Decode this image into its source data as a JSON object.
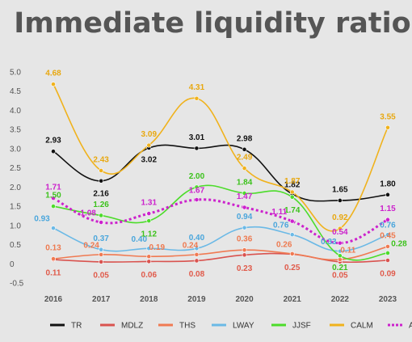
{
  "chart_data": {
    "type": "line",
    "title": "Immediate liquidity ratio",
    "xlabel": "",
    "ylabel": "",
    "categories": [
      "2016",
      "2017",
      "2018",
      "2019",
      "2020",
      "2021",
      "2022",
      "2023"
    ],
    "ylim": [
      -0.5,
      5.0
    ],
    "yticks": [
      "-0.5",
      "0",
      "0.5",
      "1.0",
      "1.5",
      "2.0",
      "2.5",
      "3.0",
      "3.5",
      "4.0",
      "4.5",
      "5.0"
    ],
    "grid": false,
    "legend_position": "bottom",
    "series": [
      {
        "name": "TR",
        "color": "#111111",
        "dash": false,
        "values": [
          2.93,
          2.16,
          3.02,
          3.01,
          2.98,
          1.82,
          1.65,
          1.8
        ],
        "labels": [
          "2.93",
          "2.16",
          "3.02",
          "3.01",
          "2.98",
          "1.82",
          "1.65",
          "1.80"
        ],
        "label_color": "#111111"
      },
      {
        "name": "MDLZ",
        "color": "#d9534f",
        "dash": false,
        "values": [
          0.11,
          0.05,
          0.06,
          0.08,
          0.23,
          0.25,
          0.05,
          0.09
        ],
        "labels": [
          "0.11",
          "0.05",
          "0.06",
          "0.08",
          "0.23",
          "0.25",
          "0.05",
          "0.09"
        ],
        "label_color": "#e05a4a"
      },
      {
        "name": "THS",
        "color": "#f07a52",
        "dash": false,
        "values": [
          0.13,
          0.24,
          0.19,
          0.24,
          0.36,
          0.26,
          0.11,
          0.45
        ],
        "labels": [
          "0.13",
          "0.24",
          "0.19",
          "0.24",
          "0.36",
          "0.26",
          "0.11",
          "0.45"
        ],
        "label_color": "#ee7a50"
      },
      {
        "name": "LWAY",
        "color": "#6bb9e6",
        "dash": false,
        "values": [
          0.93,
          0.37,
          0.4,
          0.4,
          0.94,
          0.76,
          0.33,
          0.76
        ],
        "labels": [
          "0.93",
          "0.37",
          "0.40",
          "0.40",
          "0.94",
          "0.76",
          "0.33",
          "0.76"
        ],
        "label_color": "#4aa6dc"
      },
      {
        "name": "JJSF",
        "color": "#4cdc2a",
        "dash": false,
        "values": [
          1.5,
          1.26,
          1.12,
          2.0,
          1.84,
          1.74,
          0.21,
          0.28
        ],
        "labels": [
          "1.50",
          "1.26",
          "1.12",
          "2.00",
          "1.84",
          "1.74",
          "0.21",
          "0.28"
        ],
        "label_color": "#3cc21c"
      },
      {
        "name": "CALM",
        "color": "#f0b21c",
        "dash": false,
        "values": [
          4.68,
          2.43,
          3.09,
          4.31,
          2.49,
          1.87,
          0.92,
          3.55
        ],
        "labels": [
          "4.68",
          "2.43",
          "3.09",
          "4.31",
          "2.49",
          "1.87",
          "0.92",
          "3.55"
        ],
        "label_color": "#e8a810"
      },
      {
        "name": "Average",
        "color": "#cc22cc",
        "dash": true,
        "values": [
          1.71,
          1.08,
          1.31,
          1.67,
          1.47,
          1.11,
          0.54,
          1.15
        ],
        "labels": [
          "1.71",
          "1.08",
          "1.31",
          "1.67",
          "1.47",
          "1.11",
          "0.54",
          "1.15"
        ],
        "label_color": "#cc22cc"
      }
    ]
  }
}
